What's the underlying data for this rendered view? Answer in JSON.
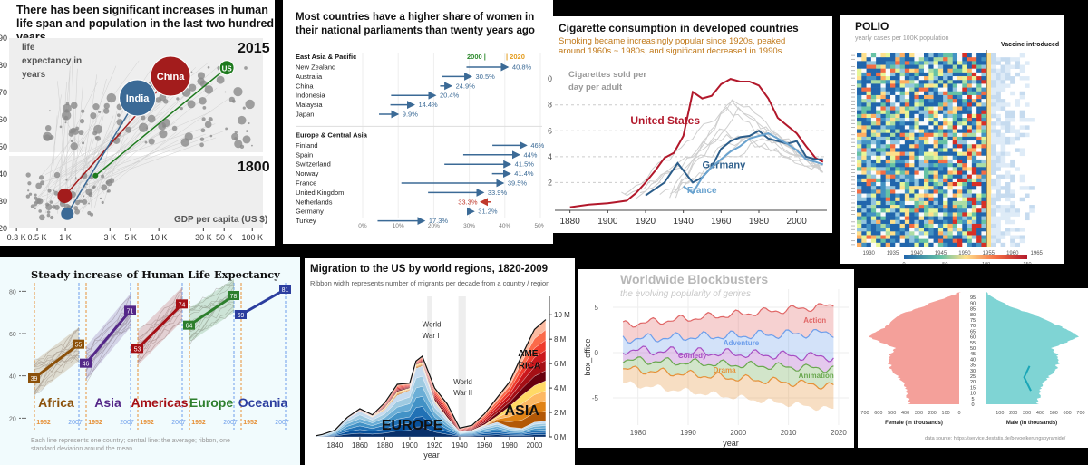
{
  "chart_data": [
    {
      "type": "scatter",
      "id": "p1",
      "title": "There has been significant increases in human life span and population in the last two hundred years",
      "ylabel": "life expectancy in years",
      "xlabel": "GDP per capita (US $)",
      "x_scale": "log",
      "x_ticks": [
        "0.3 K",
        "0.5 K",
        "1 K",
        "3 K",
        "5 K",
        "10 K",
        "30 K",
        "50 K",
        "100 K"
      ],
      "y_ticks": [
        "20",
        "30",
        "40",
        "50",
        "60",
        "70",
        "80",
        "90"
      ],
      "ylim": [
        20,
        90
      ],
      "year_start": "1800",
      "year_end": "2015",
      "countries": [
        {
          "name": "China",
          "gdp_1800": 985,
          "life_1800": 32,
          "gdp_2015": 13334,
          "life_2015": 76,
          "color": "#a31c1c"
        },
        {
          "name": "India",
          "gdp_1800": 1050,
          "life_1800": 25.4,
          "gdp_2015": 5903,
          "life_2015": 68,
          "color": "#3b6a96"
        },
        {
          "name": "US",
          "gdp_1800": 2100,
          "life_1800": 39.4,
          "gdp_2015": 53354,
          "life_2015": 79.1,
          "color": "#1e7a1e"
        }
      ]
    },
    {
      "type": "arrow",
      "id": "p2",
      "title": "Most countries have a higher share of women in their national parliaments than twenty years ago",
      "x_ticks": [
        "0%",
        "10%",
        "20%",
        "30%",
        "40%",
        "50%"
      ],
      "xlim": [
        0,
        50
      ],
      "legend": {
        "start": "2000",
        "end": "2020",
        "start_color": "#2e8b2e",
        "end_color": "#e39b1c"
      },
      "groups": [
        {
          "name": "East Asia & Pacific",
          "rows": [
            {
              "country": "New Zealand",
              "from": 29.2,
              "to": 40.8,
              "label": "40.8%"
            },
            {
              "country": "Australia",
              "from": 22.4,
              "to": 30.5,
              "label": "30.5%"
            },
            {
              "country": "China",
              "from": 21.8,
              "to": 24.9,
              "label": "24.9%"
            },
            {
              "country": "Indonesia",
              "from": 8.0,
              "to": 20.4,
              "label": "20.4%"
            },
            {
              "country": "Malaysia",
              "from": 7.8,
              "to": 14.4,
              "label": "14.4%"
            },
            {
              "country": "Japan",
              "from": 4.6,
              "to": 9.9,
              "label": "9.9%"
            }
          ]
        },
        {
          "name": "Europe & Central Asia",
          "rows": [
            {
              "country": "Finland",
              "from": 36.5,
              "to": 46,
              "label": "46%"
            },
            {
              "country": "Spain",
              "from": 28.3,
              "to": 44,
              "label": "44%"
            },
            {
              "country": "Switzerland",
              "from": 23,
              "to": 41.5,
              "label": "41.5%"
            },
            {
              "country": "Norway",
              "from": 36.4,
              "to": 41.4,
              "label": "41.4%"
            },
            {
              "country": "France",
              "from": 10.9,
              "to": 39.5,
              "label": "39.5%"
            },
            {
              "country": "United Kingdom",
              "from": 18.4,
              "to": 33.9,
              "label": "33.9%"
            },
            {
              "country": "Netherlands",
              "from": 36,
              "to": 33.3,
              "label": "33.3%"
            },
            {
              "country": "Germany",
              "from": 30.9,
              "to": 31.2,
              "label": "31.2%"
            },
            {
              "country": "Turkey",
              "from": 4.2,
              "to": 17.3,
              "label": "17.3%"
            }
          ]
        }
      ]
    },
    {
      "type": "line",
      "id": "p3",
      "title": "Cigarette consumption in developed countries",
      "subtitle": "Smoking became increasingly popular since 1920s, peaked around 1960s ~ 1980s, and significant decreased in 1990s.",
      "ylabel": "Cigarettes sold per day per adult",
      "x_ticks": [
        1880,
        1900,
        1920,
        1940,
        1960,
        1980,
        2000
      ],
      "y_ticks": [
        "2",
        "4",
        "6",
        "8",
        "0"
      ],
      "xlim": [
        1872,
        2016
      ],
      "ylim": [
        0,
        10.5
      ],
      "series": [
        {
          "name": "United States",
          "color": "#b2182b",
          "x": [
            1880,
            1890,
            1900,
            1905,
            1910,
            1915,
            1920,
            1925,
            1930,
            1935,
            1940,
            1945,
            1950,
            1955,
            1960,
            1965,
            1970,
            1975,
            1980,
            1985,
            1990,
            1995,
            2000,
            2005,
            2010,
            2014
          ],
          "y": [
            0.1,
            0.3,
            0.4,
            0.5,
            0.6,
            1.2,
            2.0,
            2.9,
            3.9,
            4.3,
            5.6,
            9.0,
            8.5,
            8.7,
            9.6,
            10.0,
            9.8,
            9.8,
            9.5,
            8.5,
            7.0,
            6.4,
            5.8,
            4.8,
            3.9,
            3.6
          ]
        },
        {
          "name": "Germany",
          "color": "#2b5d8a",
          "x": [
            1920,
            1930,
            1937,
            1945,
            1950,
            1955,
            1960,
            1965,
            1970,
            1975,
            1980,
            1985,
            1990,
            1995,
            2000,
            2005,
            2010,
            2014
          ],
          "y": [
            1.0,
            2.0,
            3.5,
            2.0,
            2.4,
            3.2,
            4.6,
            5.2,
            5.5,
            5.6,
            6.0,
            5.4,
            5.2,
            5.0,
            5.2,
            4.0,
            3.8,
            3.8
          ]
        },
        {
          "name": "France",
          "color": "#6aa3cf",
          "x": [
            1940,
            1945,
            1950,
            1955,
            1960,
            1965,
            1970,
            1975,
            1980,
            1985,
            1990,
            1995,
            2000,
            2005,
            2010,
            2014
          ],
          "y": [
            1.7,
            1.2,
            2.4,
            3.2,
            3.8,
            4.4,
            4.8,
            5.4,
            5.6,
            5.8,
            5.4,
            5.0,
            4.5,
            3.8,
            3.6,
            3.4
          ]
        }
      ]
    },
    {
      "type": "heatmap",
      "id": "p4",
      "title": "POLIO",
      "subtitle": "yearly cases per 100K population",
      "annotation": "Vaccine introduced",
      "x_ticks": [
        "1930",
        "1935",
        "1940",
        "1945",
        "1950",
        "1955",
        "1960",
        "1965"
      ],
      "xlim": [
        1928,
        1970
      ],
      "vaccine_year": 1955,
      "colorbar_ticks": [
        "0",
        "50",
        "100",
        "150"
      ],
      "n_states": 51,
      "palette": [
        "#2166ac",
        "#4393c3",
        "#92c5de",
        "#66c2a5",
        "#abdda4",
        "#e6f598",
        "#fee08b",
        "#fdae61",
        "#f46d43",
        "#d73027"
      ]
    },
    {
      "type": "line",
      "id": "p5",
      "title": "Steady increase of Human Life Expectancy",
      "footnote": "Each line represents one country; central line: the average; ribbon, one standard deviation around the mean.",
      "y_ticks": [
        "20",
        "40",
        "60",
        "80"
      ],
      "ylim": [
        18,
        84
      ],
      "year_start": "1952",
      "year_end": "2007",
      "series": [
        {
          "name": "Africa",
          "color": "#8c510a",
          "start": 39,
          "end": 55
        },
        {
          "name": "Asia",
          "color": "#542788",
          "start": 46,
          "end": 71
        },
        {
          "name": "Americas",
          "color": "#a50f15",
          "start": 53,
          "end": 74
        },
        {
          "name": "Europe",
          "color": "#2d7f2d",
          "start": 64,
          "end": 78
        },
        {
          "name": "Oceania",
          "color": "#2c3e9f",
          "start": 69,
          "end": 81
        }
      ]
    },
    {
      "type": "area",
      "id": "p6",
      "title": "Migration to the US by world regions, 1820-2009",
      "subtitle": "Ribbon width represents number of migrants per decade from a country / region",
      "xlabel": "year",
      "x_ticks": [
        1840,
        1860,
        1880,
        1900,
        1920,
        1940,
        1960,
        1980,
        2000
      ],
      "y_ticks": [
        "0 M",
        "2 M",
        "4 M",
        "6 M",
        "8 M",
        "10 M"
      ],
      "xlim": [
        1823,
        2012
      ],
      "ylim": [
        0,
        11.5
      ],
      "annotations": [
        "World War I",
        "World War II"
      ],
      "x": [
        1825,
        1830,
        1840,
        1850,
        1860,
        1870,
        1880,
        1890,
        1900,
        1905,
        1910,
        1920,
        1930,
        1940,
        1950,
        1960,
        1970,
        1980,
        1990,
        2000,
        2009
      ],
      "series": [
        {
          "name": "EUROPE",
          "values": [
            0.1,
            0.2,
            0.5,
            1.5,
            2.1,
            1.6,
            2.2,
            3.4,
            3.8,
            5.6,
            5.8,
            2.8,
            1.5,
            0.4,
            0.5,
            0.9,
            1.2,
            0.8,
            0.7,
            1.2,
            1.3
          ],
          "color": "#1f4e8c"
        },
        {
          "name": "ASIA",
          "values": [
            0,
            0,
            0,
            0,
            0.05,
            0.1,
            0.2,
            0.3,
            0.2,
            0.3,
            0.3,
            0.2,
            0.1,
            0.02,
            0.05,
            0.1,
            0.5,
            1.7,
            2.7,
            3.0,
            3.3
          ],
          "color": "#ffb000"
        },
        {
          "name": "AMERICA",
          "values": [
            0,
            0,
            0.05,
            0.1,
            0.15,
            0.1,
            0.4,
            0.6,
            0.4,
            0.3,
            0.5,
            1.0,
            1.1,
            0.3,
            0.4,
            0.9,
            1.5,
            2.0,
            3.3,
            4.6,
            5.0
          ],
          "color": "#d7301f"
        }
      ]
    },
    {
      "type": "area",
      "id": "p7",
      "title": "Worldwide Blockbusters",
      "subtitle": "the evolving popularity of genres",
      "ylabel": "box_office",
      "xlabel": "year",
      "x_ticks": [
        1980,
        1990,
        2000,
        2010,
        2020
      ],
      "y_ticks": [
        "-5",
        "0",
        "5"
      ],
      "xlim": [
        1975,
        2022
      ],
      "ylim": [
        -8,
        7
      ],
      "series": [
        {
          "name": "Action",
          "color": "#e06666"
        },
        {
          "name": "Adventure",
          "color": "#6d9eeb"
        },
        {
          "name": "Comedy",
          "color": "#a64dc3"
        },
        {
          "name": "Animation",
          "color": "#6aa84f"
        },
        {
          "name": "Drama",
          "color": "#e69138"
        }
      ]
    },
    {
      "type": "bar",
      "id": "p8",
      "xlabel_left": "Female (in thousands)",
      "xlabel_right": "Male (in thousands)",
      "source": "data source: https://service.destatis.de/bevoelkerungspyramide/",
      "x_ticks": [
        "700",
        "600",
        "500",
        "400",
        "300",
        "200",
        "100",
        "0",
        "100",
        "200",
        "300",
        "400",
        "500",
        "600",
        "700"
      ],
      "age_ticks": [
        "0",
        "5",
        "10",
        "15",
        "20",
        "25",
        "30",
        "35",
        "40",
        "45",
        "50",
        "55",
        "60",
        "65",
        "70",
        "75",
        "80",
        "85",
        "90",
        "95"
      ],
      "series": [
        {
          "name": "Female",
          "color": "#f4a09a"
        },
        {
          "name": "Male",
          "color": "#7fd4d4"
        }
      ]
    }
  ]
}
